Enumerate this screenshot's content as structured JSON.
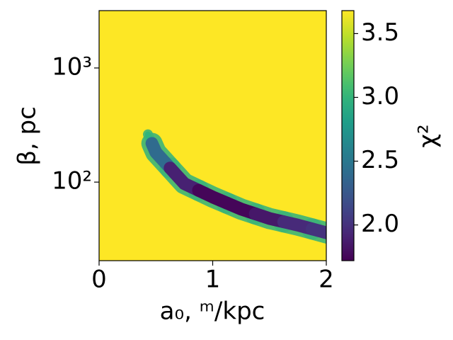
{
  "chart_data": {
    "type": "heatmap",
    "x_label": "a₀, ᵐ/kpc",
    "y_label": "β, pc",
    "colorbar_label": "χ²",
    "xlim": [
      0,
      2
    ],
    "xticks": [
      0,
      1,
      2
    ],
    "ylim": [
      20.5,
      3180
    ],
    "yscale": "log",
    "yticks": [
      {
        "value": 100,
        "label": "10²"
      },
      {
        "value": 1000,
        "label": "10³"
      }
    ],
    "clim": [
      1.72,
      3.68
    ],
    "cticks": [
      {
        "value": 2.0,
        "label": "2.0"
      },
      {
        "value": 2.5,
        "label": "2.5"
      },
      {
        "value": 3.0,
        "label": "3.0"
      },
      {
        "value": 3.5,
        "label": "3.5"
      }
    ],
    "colormap": "viridis",
    "background_value": 3.68,
    "valley": {
      "x": [
        0.43,
        0.5,
        0.75,
        1.0,
        1.25,
        1.5,
        1.75,
        2.0
      ],
      "y": [
        262,
        182,
        97,
        74,
        58,
        48,
        42,
        36
      ],
      "z": [
        3.0,
        2.4,
        1.9,
        1.75,
        1.75,
        1.85,
        1.95,
        2.0
      ]
    }
  }
}
